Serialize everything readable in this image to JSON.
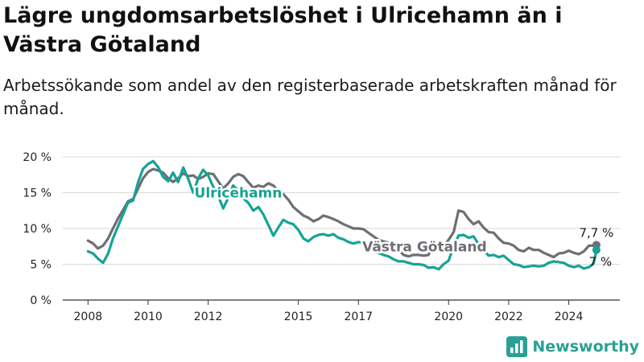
{
  "title": "Lägre ungdomsarbetslöshet i Ulricehamn än i Västra Götaland",
  "subtitle": "Arbetssökande som andel av den registerbaserade arbetskraften månad för månad.",
  "brand": {
    "name": "Newsworthy",
    "icon": "bar-chart-logo-icon",
    "color": "#2aa095"
  },
  "colors": {
    "ulricehamn": "#16a394",
    "vastra_gotaland": "#6e6e73",
    "grid": "#d9d9d9",
    "axis": "#333333"
  },
  "chart_data": {
    "type": "line",
    "ylim": [
      0,
      20
    ],
    "y_ticks": [
      {
        "value": 0,
        "label": "0 %"
      },
      {
        "value": 5,
        "label": "5 %"
      },
      {
        "value": 10,
        "label": "10 %"
      },
      {
        "value": 15,
        "label": "15 %"
      },
      {
        "value": 20,
        "label": "20 %"
      }
    ],
    "x_ticks": [
      {
        "value": 2008,
        "label": "2008"
      },
      {
        "value": 2010,
        "label": "2010"
      },
      {
        "value": 2012,
        "label": "2012"
      },
      {
        "value": 2015,
        "label": "2015"
      },
      {
        "value": 2017,
        "label": "2017"
      },
      {
        "value": 2020,
        "label": "2020"
      },
      {
        "value": 2022,
        "label": "2022"
      },
      {
        "value": 2024,
        "label": "2024"
      }
    ],
    "grid": true,
    "series": [
      {
        "name": "Västra Götaland",
        "color": "#6e6e73",
        "end_label": "7,7 %",
        "points": [
          [
            2008.0,
            8.3
          ],
          [
            2008.17,
            7.9
          ],
          [
            2008.33,
            7.2
          ],
          [
            2008.5,
            7.6
          ],
          [
            2008.67,
            8.6
          ],
          [
            2008.83,
            10.0
          ],
          [
            2009.0,
            11.4
          ],
          [
            2009.17,
            12.6
          ],
          [
            2009.33,
            13.8
          ],
          [
            2009.5,
            14.1
          ],
          [
            2009.67,
            15.6
          ],
          [
            2009.83,
            17.0
          ],
          [
            2010.0,
            17.9
          ],
          [
            2010.17,
            18.3
          ],
          [
            2010.33,
            18.1
          ],
          [
            2010.5,
            17.8
          ],
          [
            2010.67,
            17.0
          ],
          [
            2010.83,
            16.5
          ],
          [
            2011.0,
            17.0
          ],
          [
            2011.17,
            17.7
          ],
          [
            2011.33,
            17.3
          ],
          [
            2011.5,
            17.4
          ],
          [
            2011.67,
            16.9
          ],
          [
            2011.83,
            17.2
          ],
          [
            2012.0,
            17.7
          ],
          [
            2012.17,
            17.6
          ],
          [
            2012.33,
            16.6
          ],
          [
            2012.5,
            15.6
          ],
          [
            2012.67,
            16.3
          ],
          [
            2012.83,
            17.2
          ],
          [
            2013.0,
            17.6
          ],
          [
            2013.17,
            17.3
          ],
          [
            2013.33,
            16.5
          ],
          [
            2013.5,
            15.7
          ],
          [
            2013.67,
            16.0
          ],
          [
            2013.83,
            15.8
          ],
          [
            2014.0,
            16.3
          ],
          [
            2014.17,
            16.0
          ],
          [
            2014.33,
            15.2
          ],
          [
            2014.5,
            14.8
          ],
          [
            2014.67,
            14.0
          ],
          [
            2014.83,
            13.0
          ],
          [
            2015.0,
            12.4
          ],
          [
            2015.17,
            11.8
          ],
          [
            2015.33,
            11.5
          ],
          [
            2015.5,
            11.0
          ],
          [
            2015.67,
            11.3
          ],
          [
            2015.83,
            11.8
          ],
          [
            2016.0,
            11.6
          ],
          [
            2016.17,
            11.3
          ],
          [
            2016.33,
            11.0
          ],
          [
            2016.5,
            10.6
          ],
          [
            2016.67,
            10.3
          ],
          [
            2016.83,
            10.0
          ],
          [
            2017.0,
            10.0
          ],
          [
            2017.17,
            9.9
          ],
          [
            2017.33,
            9.4
          ],
          [
            2017.5,
            8.9
          ],
          [
            2017.67,
            8.4
          ],
          [
            2017.83,
            8.2
          ],
          [
            2018.0,
            8.0
          ],
          [
            2018.17,
            7.7
          ],
          [
            2018.33,
            7.0
          ],
          [
            2018.5,
            6.3
          ],
          [
            2018.67,
            6.1
          ],
          [
            2018.83,
            6.3
          ],
          [
            2019.0,
            6.3
          ],
          [
            2019.17,
            6.2
          ],
          [
            2019.33,
            6.3
          ],
          [
            2019.5,
            7.5
          ],
          [
            2019.67,
            7.8
          ],
          [
            2019.83,
            7.5
          ],
          [
            2020.0,
            8.4
          ],
          [
            2020.17,
            9.5
          ],
          [
            2020.33,
            12.5
          ],
          [
            2020.5,
            12.3
          ],
          [
            2020.67,
            11.3
          ],
          [
            2020.83,
            10.6
          ],
          [
            2021.0,
            11.0
          ],
          [
            2021.17,
            10.1
          ],
          [
            2021.33,
            9.5
          ],
          [
            2021.5,
            9.4
          ],
          [
            2021.67,
            8.6
          ],
          [
            2021.83,
            8.0
          ],
          [
            2022.0,
            7.9
          ],
          [
            2022.17,
            7.6
          ],
          [
            2022.33,
            7.0
          ],
          [
            2022.5,
            6.8
          ],
          [
            2022.67,
            7.3
          ],
          [
            2022.83,
            7.0
          ],
          [
            2023.0,
            7.0
          ],
          [
            2023.17,
            6.6
          ],
          [
            2023.33,
            6.3
          ],
          [
            2023.5,
            6.0
          ],
          [
            2023.67,
            6.5
          ],
          [
            2023.83,
            6.6
          ],
          [
            2024.0,
            6.9
          ],
          [
            2024.17,
            6.6
          ],
          [
            2024.33,
            6.4
          ],
          [
            2024.5,
            6.8
          ],
          [
            2024.67,
            7.6
          ],
          [
            2024.83,
            7.6
          ],
          [
            2024.92,
            7.7
          ]
        ]
      },
      {
        "name": "Ulricehamn",
        "color": "#16a394",
        "end_label": "7 %",
        "points": [
          [
            2008.0,
            6.8
          ],
          [
            2008.17,
            6.5
          ],
          [
            2008.33,
            5.8
          ],
          [
            2008.5,
            5.2
          ],
          [
            2008.67,
            6.5
          ],
          [
            2008.83,
            8.6
          ],
          [
            2009.0,
            10.3
          ],
          [
            2009.17,
            12.0
          ],
          [
            2009.33,
            13.6
          ],
          [
            2009.5,
            13.9
          ],
          [
            2009.67,
            16.5
          ],
          [
            2009.83,
            18.3
          ],
          [
            2010.0,
            19.0
          ],
          [
            2010.17,
            19.4
          ],
          [
            2010.33,
            18.6
          ],
          [
            2010.5,
            17.2
          ],
          [
            2010.67,
            16.6
          ],
          [
            2010.83,
            17.8
          ],
          [
            2011.0,
            16.5
          ],
          [
            2011.17,
            18.5
          ],
          [
            2011.33,
            17.0
          ],
          [
            2011.5,
            15.0
          ],
          [
            2011.67,
            17.0
          ],
          [
            2011.83,
            18.2
          ],
          [
            2012.0,
            17.4
          ],
          [
            2012.17,
            15.8
          ],
          [
            2012.33,
            14.6
          ],
          [
            2012.5,
            12.8
          ],
          [
            2012.67,
            14.3
          ],
          [
            2012.83,
            16.0
          ],
          [
            2013.0,
            15.3
          ],
          [
            2013.17,
            14.2
          ],
          [
            2013.33,
            13.6
          ],
          [
            2013.5,
            12.5
          ],
          [
            2013.67,
            13.0
          ],
          [
            2013.83,
            12.0
          ],
          [
            2014.0,
            10.5
          ],
          [
            2014.17,
            9.0
          ],
          [
            2014.33,
            10.1
          ],
          [
            2014.5,
            11.2
          ],
          [
            2014.67,
            10.8
          ],
          [
            2014.83,
            10.6
          ],
          [
            2015.0,
            9.8
          ],
          [
            2015.17,
            8.6
          ],
          [
            2015.33,
            8.2
          ],
          [
            2015.5,
            8.8
          ],
          [
            2015.67,
            9.1
          ],
          [
            2015.83,
            9.2
          ],
          [
            2016.0,
            9.0
          ],
          [
            2016.17,
            9.2
          ],
          [
            2016.33,
            8.7
          ],
          [
            2016.5,
            8.5
          ],
          [
            2016.67,
            8.1
          ],
          [
            2016.83,
            7.9
          ],
          [
            2017.0,
            8.1
          ],
          [
            2017.17,
            8.0
          ],
          [
            2017.33,
            7.2
          ],
          [
            2017.5,
            6.9
          ],
          [
            2017.67,
            6.6
          ],
          [
            2017.83,
            6.3
          ],
          [
            2018.0,
            6.1
          ],
          [
            2018.17,
            5.7
          ],
          [
            2018.33,
            5.4
          ],
          [
            2018.5,
            5.4
          ],
          [
            2018.67,
            5.2
          ],
          [
            2018.83,
            5.0
          ],
          [
            2019.0,
            5.0
          ],
          [
            2019.17,
            4.9
          ],
          [
            2019.33,
            4.5
          ],
          [
            2019.5,
            4.6
          ],
          [
            2019.67,
            4.3
          ],
          [
            2019.83,
            5.0
          ],
          [
            2020.0,
            5.5
          ],
          [
            2020.17,
            7.5
          ],
          [
            2020.33,
            9.0
          ],
          [
            2020.5,
            9.1
          ],
          [
            2020.67,
            8.7
          ],
          [
            2020.83,
            8.9
          ],
          [
            2021.0,
            7.8
          ],
          [
            2021.17,
            7.0
          ],
          [
            2021.33,
            6.2
          ],
          [
            2021.5,
            6.3
          ],
          [
            2021.67,
            6.0
          ],
          [
            2021.83,
            6.2
          ],
          [
            2022.0,
            5.6
          ],
          [
            2022.17,
            5.0
          ],
          [
            2022.33,
            4.9
          ],
          [
            2022.5,
            4.6
          ],
          [
            2022.67,
            4.7
          ],
          [
            2022.83,
            4.8
          ],
          [
            2023.0,
            4.7
          ],
          [
            2023.17,
            4.8
          ],
          [
            2023.33,
            5.2
          ],
          [
            2023.5,
            5.4
          ],
          [
            2023.67,
            5.3
          ],
          [
            2023.83,
            5.2
          ],
          [
            2024.0,
            4.8
          ],
          [
            2024.17,
            4.6
          ],
          [
            2024.33,
            4.8
          ],
          [
            2024.5,
            4.4
          ],
          [
            2024.67,
            4.6
          ],
          [
            2024.83,
            5.1
          ],
          [
            2024.92,
            7.0
          ]
        ]
      }
    ],
    "annotations": [
      {
        "series": "Ulricehamn",
        "text": "Ulricehamn",
        "x": 2013.0,
        "y": 14.3
      },
      {
        "series": "Västra Götaland",
        "text": "Västra Götaland",
        "x": 2019.2,
        "y": 6.8
      }
    ]
  }
}
